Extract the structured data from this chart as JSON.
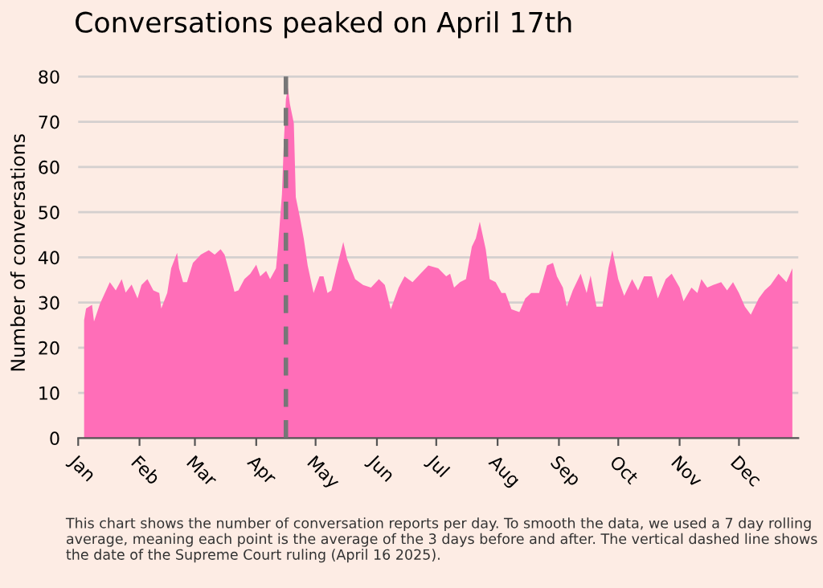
{
  "chart_data": {
    "type": "area",
    "title": "Conversations peaked on April 17th",
    "ylabel": "Number of conversations",
    "x": [
      "2025-01-04",
      "2025-01-05",
      "2025-01-08",
      "2025-01-09",
      "2025-01-12",
      "2025-01-17",
      "2025-01-20",
      "2025-01-23",
      "2025-01-25",
      "2025-01-28",
      "2025-01-31",
      "2025-02-02",
      "2025-02-05",
      "2025-02-08",
      "2025-02-11",
      "2025-02-12",
      "2025-02-15",
      "2025-02-17",
      "2025-02-20",
      "2025-02-21",
      "2025-02-23",
      "2025-02-25",
      "2025-02-28",
      "2025-03-04",
      "2025-03-08",
      "2025-03-11",
      "2025-03-14",
      "2025-03-16",
      "2025-03-19",
      "2025-03-21",
      "2025-03-23",
      "2025-03-26",
      "2025-03-29",
      "2025-04-01",
      "2025-04-03",
      "2025-04-06",
      "2025-04-08",
      "2025-04-11",
      "2025-04-12",
      "2025-04-14",
      "2025-04-15",
      "2025-04-16",
      "2025-04-17",
      "2025-04-18",
      "2025-04-20",
      "2025-04-21",
      "2025-04-23",
      "2025-04-25",
      "2025-04-27",
      "2025-04-30",
      "2025-05-03",
      "2025-05-05",
      "2025-05-07",
      "2025-05-09",
      "2025-05-12",
      "2025-05-15",
      "2025-05-17",
      "2025-05-21",
      "2025-05-25",
      "2025-05-29",
      "2025-06-02",
      "2025-06-05",
      "2025-06-08",
      "2025-06-12",
      "2025-06-15",
      "2025-06-19",
      "2025-06-23",
      "2025-06-27",
      "2025-07-02",
      "2025-07-06",
      "2025-07-08",
      "2025-07-10",
      "2025-07-13",
      "2025-07-16",
      "2025-07-19",
      "2025-07-21",
      "2025-07-23",
      "2025-07-26",
      "2025-07-28",
      "2025-07-31",
      "2025-08-03",
      "2025-08-05",
      "2025-08-08",
      "2025-08-12",
      "2025-08-15",
      "2025-08-18",
      "2025-08-22",
      "2025-08-26",
      "2025-08-29",
      "2025-08-31",
      "2025-09-03",
      "2025-09-05",
      "2025-09-08",
      "2025-09-12",
      "2025-09-15",
      "2025-09-17",
      "2025-09-20",
      "2025-09-23",
      "2025-09-26",
      "2025-09-28",
      "2025-10-01",
      "2025-10-04",
      "2025-10-08",
      "2025-10-11",
      "2025-10-14",
      "2025-10-18",
      "2025-10-21",
      "2025-10-25",
      "2025-10-28",
      "2025-11-01",
      "2025-11-03",
      "2025-11-07",
      "2025-11-10",
      "2025-11-12",
      "2025-11-15",
      "2025-11-18",
      "2025-11-22",
      "2025-11-25",
      "2025-11-28",
      "2025-12-01",
      "2025-12-04",
      "2025-12-07",
      "2025-12-11",
      "2025-12-14",
      "2025-12-17",
      "2025-12-21",
      "2025-12-25",
      "2025-12-28"
    ],
    "series": [
      {
        "color": "#ff6eb8",
        "values": [
          26.1,
          28.7,
          29.5,
          25.8,
          29.7,
          34.5,
          32.7,
          35.2,
          32.2,
          34,
          30.9,
          33.9,
          35.2,
          32.7,
          32.1,
          28.7,
          32.1,
          37.6,
          41,
          37.6,
          34.5,
          34.5,
          38.8,
          40.6,
          41.6,
          40.6,
          41.8,
          40.6,
          35.8,
          32.4,
          32.7,
          35.2,
          36.4,
          38.4,
          35.8,
          37,
          35.2,
          37.6,
          42.4,
          54,
          66,
          75,
          77.5,
          74,
          69.7,
          53.3,
          49,
          44.2,
          38.2,
          32.1,
          35.8,
          35.8,
          32.1,
          32.7,
          38.2,
          43.4,
          39.6,
          35.2,
          33.9,
          33.3,
          35.2,
          33.9,
          28.5,
          33.3,
          35.8,
          34.5,
          36.4,
          38.2,
          37.6,
          35.8,
          36.4,
          33.3,
          34.5,
          35.2,
          42.4,
          44.2,
          47.9,
          41.8,
          35.2,
          34.5,
          32.1,
          32.1,
          28.5,
          27.9,
          30.9,
          32.1,
          32.1,
          38.2,
          38.8,
          35.8,
          33.3,
          29.1,
          32.7,
          36.4,
          32.1,
          36,
          29.1,
          29.1,
          37.6,
          41.6,
          35.2,
          31.5,
          35.2,
          32.7,
          35.8,
          35.8,
          30.9,
          35.2,
          36.4,
          33.3,
          30.3,
          33.3,
          32.1,
          35.2,
          33.3,
          33.9,
          34.5,
          32.7,
          34.5,
          32.1,
          29.1,
          27.3,
          30.9,
          32.7,
          33.9,
          36.4,
          34.5,
          37.6
        ]
      }
    ],
    "xlim": [
      "2025-01-01",
      "2025-12-31"
    ],
    "xticks": [
      {
        "value": "2025-01-01",
        "label": "Jan"
      },
      {
        "value": "2025-02-01",
        "label": "Feb"
      },
      {
        "value": "2025-03-01",
        "label": "Mar"
      },
      {
        "value": "2025-04-01",
        "label": "Apr"
      },
      {
        "value": "2025-05-01",
        "label": "May"
      },
      {
        "value": "2025-06-01",
        "label": "Jun"
      },
      {
        "value": "2025-07-01",
        "label": "Jul"
      },
      {
        "value": "2025-08-01",
        "label": "Aug"
      },
      {
        "value": "2025-09-01",
        "label": "Sep"
      },
      {
        "value": "2025-10-01",
        "label": "Oct"
      },
      {
        "value": "2025-11-01",
        "label": "Nov"
      },
      {
        "value": "2025-12-01",
        "label": "Dec"
      }
    ],
    "ylim": [
      0,
      82
    ],
    "yticks": [
      0,
      10,
      20,
      30,
      40,
      50,
      60,
      70,
      80
    ],
    "grid": "y",
    "ref_lines": [
      {
        "axis": "x",
        "value": "2025-04-16",
        "label": null,
        "color": "#777777",
        "line_style": "dashed"
      }
    ],
    "annotations": [
      "This chart shows the number of conversation reports per day. To smooth the data, we used a 7 day rolling average, meaning each point is the average of the 3 days before and after. The vertical dashed line shows the date of the Supreme Court ruling (April 16 2025)."
    ]
  }
}
